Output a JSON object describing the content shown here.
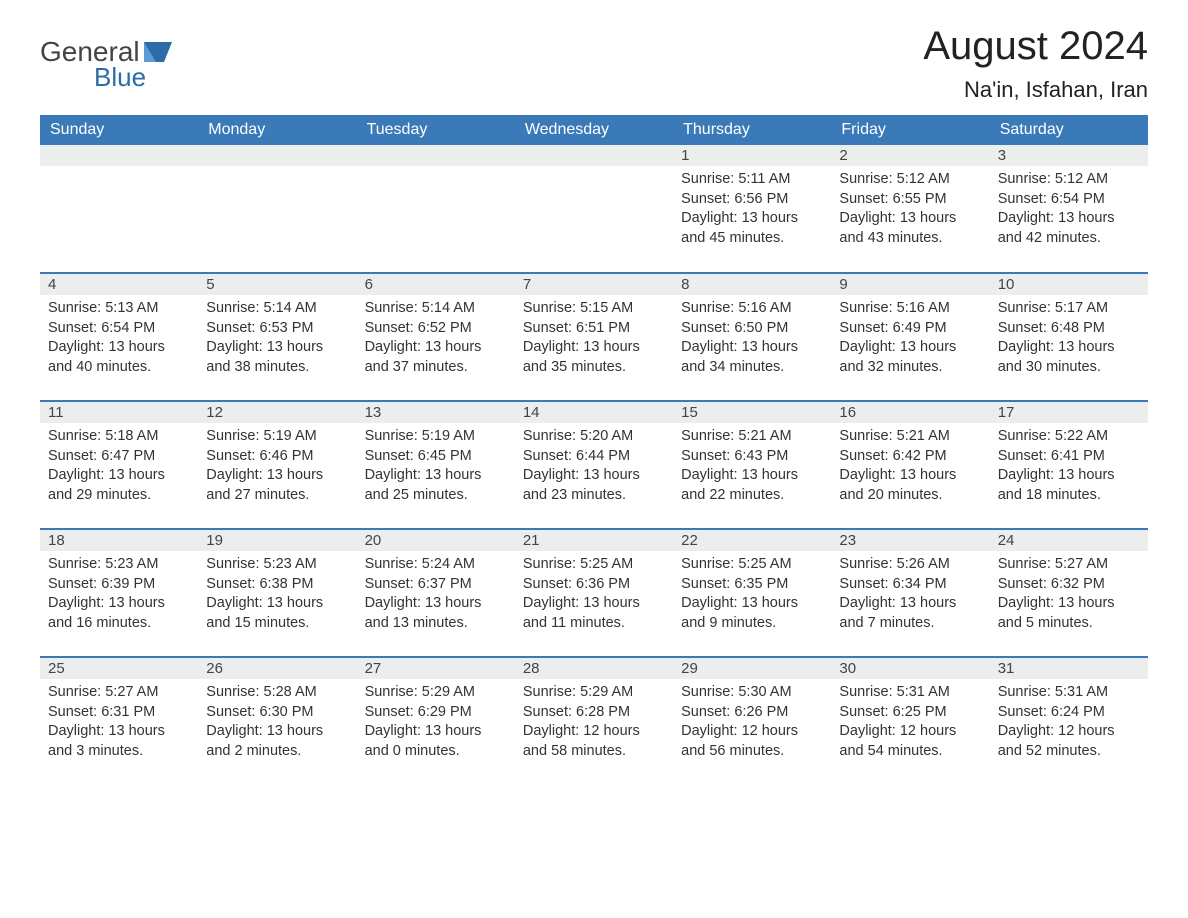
{
  "logo": {
    "word1": "General",
    "word2": "Blue",
    "logo_color": "#2d6ca8"
  },
  "title": "August 2024",
  "location": "Na'in, Isfahan, Iran",
  "header_bg": "#3a7ab8",
  "daynum_bg": "#eceded",
  "weekdays": [
    "Sunday",
    "Monday",
    "Tuesday",
    "Wednesday",
    "Thursday",
    "Friday",
    "Saturday"
  ],
  "weeks": [
    [
      null,
      null,
      null,
      null,
      {
        "n": "1",
        "sr": "5:11 AM",
        "ss": "6:56 PM",
        "dl": "13 hours and 45 minutes."
      },
      {
        "n": "2",
        "sr": "5:12 AM",
        "ss": "6:55 PM",
        "dl": "13 hours and 43 minutes."
      },
      {
        "n": "3",
        "sr": "5:12 AM",
        "ss": "6:54 PM",
        "dl": "13 hours and 42 minutes."
      }
    ],
    [
      {
        "n": "4",
        "sr": "5:13 AM",
        "ss": "6:54 PM",
        "dl": "13 hours and 40 minutes."
      },
      {
        "n": "5",
        "sr": "5:14 AM",
        "ss": "6:53 PM",
        "dl": "13 hours and 38 minutes."
      },
      {
        "n": "6",
        "sr": "5:14 AM",
        "ss": "6:52 PM",
        "dl": "13 hours and 37 minutes."
      },
      {
        "n": "7",
        "sr": "5:15 AM",
        "ss": "6:51 PM",
        "dl": "13 hours and 35 minutes."
      },
      {
        "n": "8",
        "sr": "5:16 AM",
        "ss": "6:50 PM",
        "dl": "13 hours and 34 minutes."
      },
      {
        "n": "9",
        "sr": "5:16 AM",
        "ss": "6:49 PM",
        "dl": "13 hours and 32 minutes."
      },
      {
        "n": "10",
        "sr": "5:17 AM",
        "ss": "6:48 PM",
        "dl": "13 hours and 30 minutes."
      }
    ],
    [
      {
        "n": "11",
        "sr": "5:18 AM",
        "ss": "6:47 PM",
        "dl": "13 hours and 29 minutes."
      },
      {
        "n": "12",
        "sr": "5:19 AM",
        "ss": "6:46 PM",
        "dl": "13 hours and 27 minutes."
      },
      {
        "n": "13",
        "sr": "5:19 AM",
        "ss": "6:45 PM",
        "dl": "13 hours and 25 minutes."
      },
      {
        "n": "14",
        "sr": "5:20 AM",
        "ss": "6:44 PM",
        "dl": "13 hours and 23 minutes."
      },
      {
        "n": "15",
        "sr": "5:21 AM",
        "ss": "6:43 PM",
        "dl": "13 hours and 22 minutes."
      },
      {
        "n": "16",
        "sr": "5:21 AM",
        "ss": "6:42 PM",
        "dl": "13 hours and 20 minutes."
      },
      {
        "n": "17",
        "sr": "5:22 AM",
        "ss": "6:41 PM",
        "dl": "13 hours and 18 minutes."
      }
    ],
    [
      {
        "n": "18",
        "sr": "5:23 AM",
        "ss": "6:39 PM",
        "dl": "13 hours and 16 minutes."
      },
      {
        "n": "19",
        "sr": "5:23 AM",
        "ss": "6:38 PM",
        "dl": "13 hours and 15 minutes."
      },
      {
        "n": "20",
        "sr": "5:24 AM",
        "ss": "6:37 PM",
        "dl": "13 hours and 13 minutes."
      },
      {
        "n": "21",
        "sr": "5:25 AM",
        "ss": "6:36 PM",
        "dl": "13 hours and 11 minutes."
      },
      {
        "n": "22",
        "sr": "5:25 AM",
        "ss": "6:35 PM",
        "dl": "13 hours and 9 minutes."
      },
      {
        "n": "23",
        "sr": "5:26 AM",
        "ss": "6:34 PM",
        "dl": "13 hours and 7 minutes."
      },
      {
        "n": "24",
        "sr": "5:27 AM",
        "ss": "6:32 PM",
        "dl": "13 hours and 5 minutes."
      }
    ],
    [
      {
        "n": "25",
        "sr": "5:27 AM",
        "ss": "6:31 PM",
        "dl": "13 hours and 3 minutes."
      },
      {
        "n": "26",
        "sr": "5:28 AM",
        "ss": "6:30 PM",
        "dl": "13 hours and 2 minutes."
      },
      {
        "n": "27",
        "sr": "5:29 AM",
        "ss": "6:29 PM",
        "dl": "13 hours and 0 minutes."
      },
      {
        "n": "28",
        "sr": "5:29 AM",
        "ss": "6:28 PM",
        "dl": "12 hours and 58 minutes."
      },
      {
        "n": "29",
        "sr": "5:30 AM",
        "ss": "6:26 PM",
        "dl": "12 hours and 56 minutes."
      },
      {
        "n": "30",
        "sr": "5:31 AM",
        "ss": "6:25 PM",
        "dl": "12 hours and 54 minutes."
      },
      {
        "n": "31",
        "sr": "5:31 AM",
        "ss": "6:24 PM",
        "dl": "12 hours and 52 minutes."
      }
    ]
  ],
  "labels": {
    "sunrise": "Sunrise:",
    "sunset": "Sunset:",
    "daylight": "Daylight:"
  }
}
